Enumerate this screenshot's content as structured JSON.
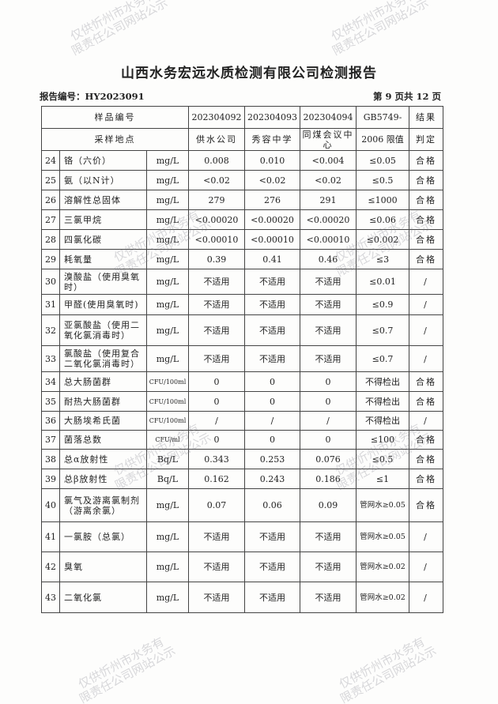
{
  "title": "山西水务宏远水质检测有限公司检测报告",
  "report_no": "报告编号：HY2023091",
  "page_info": "第 9 页共 12 页",
  "watermark": [
    "仅供忻州市水务有",
    "限责任公司网站公示"
  ],
  "header": {
    "sample_no_label": "样品编号",
    "site_label": "采样地点",
    "samples": [
      "202304092",
      "202304093",
      "202304094"
    ],
    "sites": [
      "供水公司",
      "秀容中学",
      "同煤会议中心"
    ],
    "limit_label_1": "GB5749-",
    "limit_label_2": "2006 限值",
    "result_label_1": "结果",
    "result_label_2": "判定"
  },
  "rows": [
    {
      "no": "24",
      "name": "铬（六价）",
      "unit": "mg/L",
      "v": [
        "0.008",
        "0.010",
        "<0.004"
      ],
      "limit": "≤0.05",
      "result": "合格"
    },
    {
      "no": "25",
      "name": "氨（以N计）",
      "unit": "mg/L",
      "v": [
        "<0.02",
        "<0.02",
        "<0.02"
      ],
      "limit": "≤0.5",
      "result": "合格"
    },
    {
      "no": "26",
      "name": "溶解性总固体",
      "unit": "mg/L",
      "v": [
        "279",
        "276",
        "291"
      ],
      "limit": "≤1000",
      "result": "合格"
    },
    {
      "no": "27",
      "name": "三氯甲烷",
      "unit": "mg/L",
      "v": [
        "<0.00020",
        "<0.00020",
        "<0.00020"
      ],
      "limit": "≤0.06",
      "result": "合格"
    },
    {
      "no": "28",
      "name": "四氯化碳",
      "unit": "mg/L",
      "v": [
        "<0.00010",
        "<0.00010",
        "<0.00010"
      ],
      "limit": "≤0.002",
      "result": "合格"
    },
    {
      "no": "29",
      "name": "耗氧量",
      "unit": "mg/L",
      "v": [
        "0.39",
        "0.41",
        "0.46"
      ],
      "limit": "≤3",
      "result": "合格"
    },
    {
      "no": "30",
      "name": "溴酸盐（使用臭氧时）",
      "unit": "mg/L",
      "v": [
        "不适用",
        "不适用",
        "不适用"
      ],
      "limit": "≤0.01",
      "result": "/"
    },
    {
      "no": "31",
      "name": "甲醛(使用臭氧时)",
      "unit": "mg/L",
      "v": [
        "不适用",
        "不适用",
        "不适用"
      ],
      "limit": "≤0.9",
      "result": "/"
    },
    {
      "no": "32",
      "name": "亚氯酸盐（使用二氧化氯消毒时）",
      "unit": "mg/L",
      "v": [
        "不适用",
        "不适用",
        "不适用"
      ],
      "limit": "≤0.7",
      "result": "/"
    },
    {
      "no": "33",
      "name": "氯酸盐（使用复合二氧化氯消毒时）",
      "unit": "mg/L",
      "v": [
        "不适用",
        "不适用",
        "不适用"
      ],
      "limit": "≤0.7",
      "result": "/"
    },
    {
      "no": "34",
      "name": "总大肠菌群",
      "unit": "CFU/100ml",
      "v": [
        "0",
        "0",
        "0"
      ],
      "limit": "不得检出",
      "result": "合格"
    },
    {
      "no": "35",
      "name": "耐热大肠菌群",
      "unit": "CFU/100ml",
      "v": [
        "0",
        "0",
        "0"
      ],
      "limit": "不得检出",
      "result": "合格"
    },
    {
      "no": "36",
      "name": "大肠埃希氏菌",
      "unit": "CFU/100ml",
      "v": [
        "/",
        "/",
        "/"
      ],
      "limit": "不得检出",
      "result": "/"
    },
    {
      "no": "37",
      "name": "菌落总数",
      "unit": "CFU/ml",
      "v": [
        "0",
        "0",
        "0"
      ],
      "limit": "≤100",
      "result": "合格"
    },
    {
      "no": "38",
      "name": "总α放射性",
      "unit": "Bq/L",
      "v": [
        "0.343",
        "0.253",
        "0.076"
      ],
      "limit": "≤0.5",
      "result": "合格"
    },
    {
      "no": "39",
      "name": "总β放射性",
      "unit": "Bq/L",
      "v": [
        "0.162",
        "0.243",
        "0.186"
      ],
      "limit": "≤1",
      "result": "合格"
    },
    {
      "no": "40",
      "name": "氯气及游离氯制剂（游离余氯）",
      "unit": "mg/L",
      "v": [
        "0.07",
        "0.06",
        "0.09"
      ],
      "limit": "管网水≥0.05",
      "result": "合格"
    },
    {
      "no": "41",
      "name": "一氯胺（总氯）",
      "unit": "mg/L",
      "v": [
        "不适用",
        "不适用",
        "不适用"
      ],
      "limit": "管网水≥0.05",
      "result": "/"
    },
    {
      "no": "42",
      "name": "臭氧",
      "unit": "mg/L",
      "v": [
        "不适用",
        "不适用",
        "不适用"
      ],
      "limit": "管网水≥0.02",
      "result": "/"
    },
    {
      "no": "43",
      "name": "二氧化氯",
      "unit": "mg/L",
      "v": [
        "不适用",
        "不适用",
        "不适用"
      ],
      "limit": "管网水≥0.02",
      "result": "/"
    }
  ]
}
